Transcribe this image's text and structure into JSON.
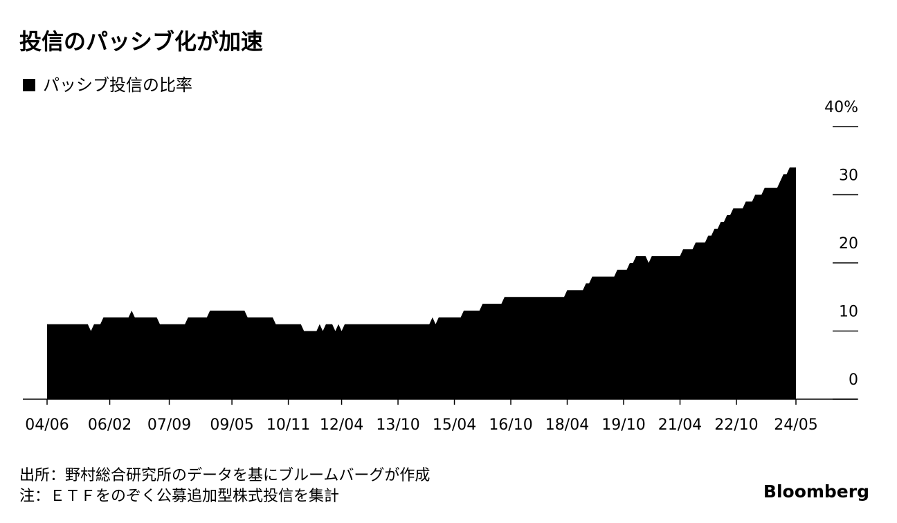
{
  "chart_data": {
    "type": "area",
    "title": "投信のパッシブ化が加速",
    "source": "出所：野村総合研究所のデータを基にブルームバーグが作成",
    "note": "注：ＥＴＦをのぞく公募追加型株式投信を集計",
    "credit": "Bloomberg",
    "categories": [
      "04/06",
      null,
      null,
      null,
      null,
      null,
      null,
      null,
      null,
      null,
      null,
      null,
      null,
      null,
      null,
      null,
      null,
      null,
      null,
      null,
      "06/02",
      null,
      null,
      null,
      null,
      null,
      null,
      null,
      null,
      null,
      null,
      null,
      null,
      null,
      null,
      null,
      null,
      null,
      null,
      "07/09",
      null,
      null,
      null,
      null,
      null,
      null,
      null,
      null,
      null,
      null,
      null,
      null,
      null,
      null,
      null,
      null,
      null,
      null,
      null,
      "09/05",
      null,
      null,
      null,
      null,
      null,
      null,
      null,
      null,
      null,
      null,
      null,
      null,
      null,
      null,
      null,
      null,
      null,
      "10/11",
      null,
      null,
      null,
      null,
      null,
      null,
      null,
      null,
      null,
      null,
      null,
      null,
      null,
      null,
      null,
      null,
      "12/04",
      null,
      null,
      null,
      null,
      null,
      null,
      null,
      null,
      null,
      null,
      null,
      null,
      null,
      null,
      null,
      null,
      null,
      "13/10",
      null,
      null,
      null,
      null,
      null,
      null,
      null,
      null,
      null,
      null,
      null,
      null,
      null,
      null,
      null,
      null,
      null,
      "15/04",
      null,
      null,
      null,
      null,
      null,
      null,
      null,
      null,
      null,
      null,
      null,
      null,
      null,
      null,
      null,
      null,
      null,
      "16/10",
      null,
      null,
      null,
      null,
      null,
      null,
      null,
      null,
      null,
      null,
      null,
      null,
      null,
      null,
      null,
      null,
      null,
      "18/04",
      null,
      null,
      null,
      null,
      null,
      null,
      null,
      null,
      null,
      null,
      null,
      null,
      null,
      null,
      null,
      null,
      null,
      "19/10",
      null,
      null,
      null,
      null,
      null,
      null,
      null,
      null,
      null,
      null,
      null,
      null,
      null,
      null,
      null,
      null,
      null,
      "21/04",
      null,
      null,
      null,
      null,
      null,
      null,
      null,
      null,
      null,
      null,
      null,
      null,
      null,
      null,
      null,
      null,
      null,
      "22/10",
      null,
      null,
      null,
      null,
      null,
      null,
      null,
      null,
      null,
      null,
      null,
      null,
      null,
      null,
      null,
      null,
      null,
      null,
      "24/05"
    ],
    "series": [
      {
        "name": "パッシブ投信の比率",
        "color": "#000000",
        "values": [
          11,
          11,
          11,
          11,
          11,
          11,
          11,
          11,
          11,
          11,
          11,
          11,
          11,
          11,
          10,
          11,
          11,
          11,
          12,
          12,
          12,
          12,
          12,
          12,
          12,
          12,
          12,
          13,
          12,
          12,
          12,
          12,
          12,
          12,
          12,
          12,
          11,
          11,
          11,
          11,
          11,
          11,
          11,
          11,
          11,
          12,
          12,
          12,
          12,
          12,
          12,
          12,
          13,
          13,
          13,
          13,
          13,
          13,
          13,
          13,
          13,
          13,
          13,
          13,
          12,
          12,
          12,
          12,
          12,
          12,
          12,
          12,
          12,
          11,
          11,
          11,
          11,
          11,
          11,
          11,
          11,
          11,
          10,
          10,
          10,
          10,
          10,
          11,
          10,
          11,
          11,
          11,
          10,
          11,
          10,
          11,
          11,
          11,
          11,
          11,
          11,
          11,
          11,
          11,
          11,
          11,
          11,
          11,
          11,
          11,
          11,
          11,
          11,
          11,
          11,
          11,
          11,
          11,
          11,
          11,
          11,
          11,
          11,
          12,
          11,
          12,
          12,
          12,
          12,
          12,
          12,
          12,
          12,
          13,
          13,
          13,
          13,
          13,
          13,
          14,
          14,
          14,
          14,
          14,
          14,
          14,
          15,
          15,
          15,
          15,
          15,
          15,
          15,
          15,
          15,
          15,
          15,
          15,
          15,
          15,
          15,
          15,
          15,
          15,
          15,
          15,
          16,
          16,
          16,
          16,
          16,
          16,
          17,
          17,
          18,
          18,
          18,
          18,
          18,
          18,
          18,
          18,
          19,
          19,
          19,
          19,
          20,
          20,
          21,
          21,
          21,
          21,
          20,
          21,
          21,
          21,
          21,
          21,
          21,
          21,
          21,
          21,
          21,
          22,
          22,
          22,
          22,
          23,
          23,
          23,
          23,
          24,
          24,
          25,
          25,
          26,
          26,
          27,
          27,
          28,
          28,
          28,
          28,
          29,
          29,
          29,
          30,
          30,
          30,
          31,
          31,
          31,
          31,
          31,
          32,
          33,
          33,
          34,
          34,
          34
        ]
      }
    ],
    "ylim": [
      0,
      40
    ],
    "yticks": [
      0,
      10,
      20,
      30,
      {
        "value": 40,
        "label": "40%"
      }
    ],
    "y_axis_side": "right"
  }
}
